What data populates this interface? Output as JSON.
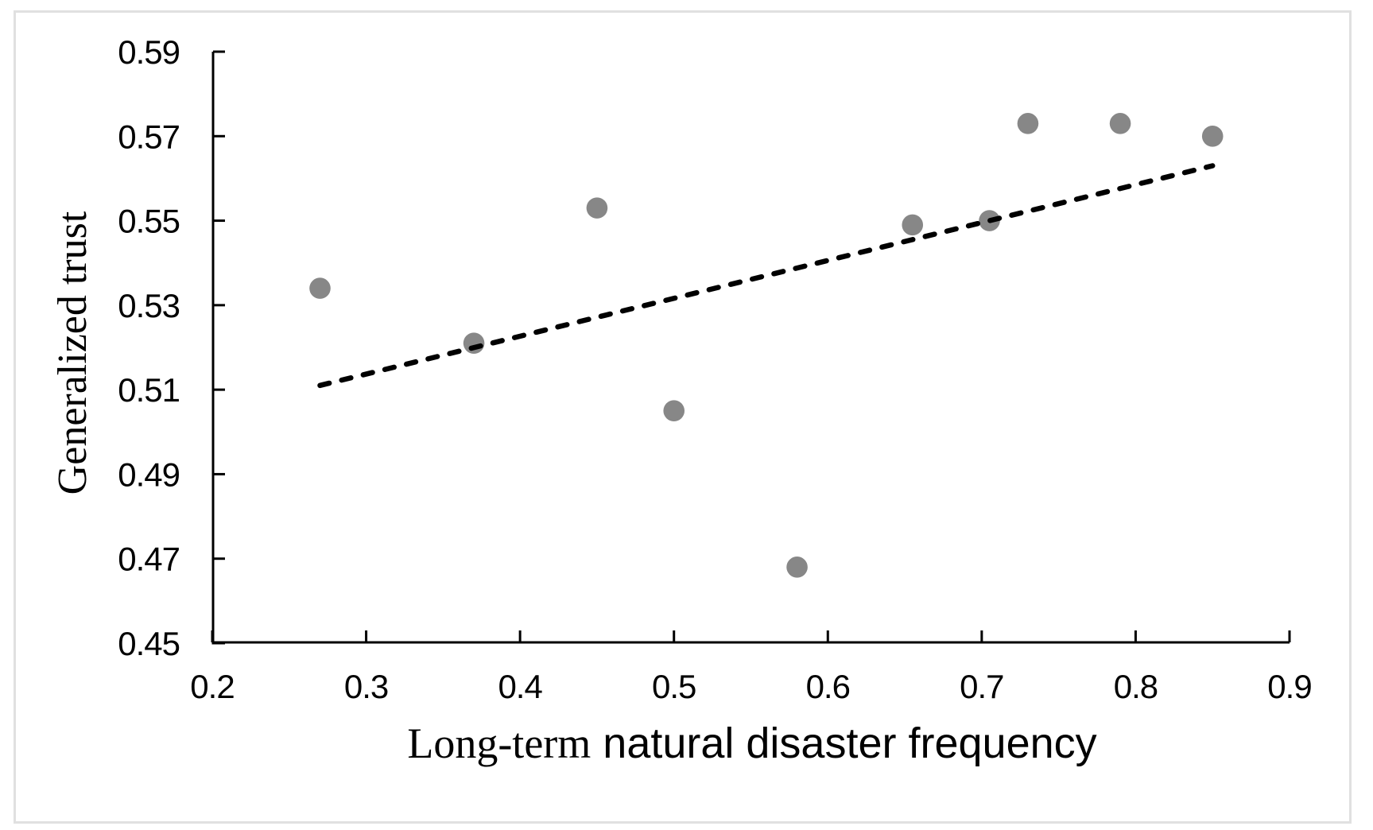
{
  "figure": {
    "background": "#ffffff",
    "border_color": "#e0e0e0"
  },
  "chart_data": {
    "type": "scatter",
    "title": "",
    "xlabel": "Long-term natural disaster frequency",
    "ylabel": "Generalized trust",
    "xlabel_parts": {
      "serif": "Long-term",
      "sans": " natural disaster frequency"
    },
    "xlim": [
      0.2,
      0.9
    ],
    "ylim": [
      0.45,
      0.59
    ],
    "x_ticks": [
      "0.2",
      "0.3",
      "0.4",
      "0.5",
      "0.6",
      "0.7",
      "0.8",
      "0.9"
    ],
    "y_ticks": [
      "0.45",
      "0.47",
      "0.49",
      "0.51",
      "0.53",
      "0.55",
      "0.57",
      "0.59"
    ],
    "grid": false,
    "legend": false,
    "axis_color": "#000000",
    "series": [
      {
        "name": "observations",
        "type": "points",
        "marker": "circle",
        "marker_color": "#878787",
        "marker_radius_px": 13.3,
        "points": [
          {
            "x": 0.27,
            "y": 0.534
          },
          {
            "x": 0.37,
            "y": 0.521
          },
          {
            "x": 0.45,
            "y": 0.553
          },
          {
            "x": 0.5,
            "y": 0.505
          },
          {
            "x": 0.58,
            "y": 0.468
          },
          {
            "x": 0.655,
            "y": 0.549
          },
          {
            "x": 0.705,
            "y": 0.55
          },
          {
            "x": 0.73,
            "y": 0.573
          },
          {
            "x": 0.79,
            "y": 0.573
          },
          {
            "x": 0.85,
            "y": 0.57
          }
        ]
      },
      {
        "name": "linear-trend",
        "type": "dashed-line",
        "color": "#000000",
        "start": {
          "x": 0.27,
          "y": 0.511
        },
        "end": {
          "x": 0.85,
          "y": 0.563
        }
      }
    ]
  }
}
